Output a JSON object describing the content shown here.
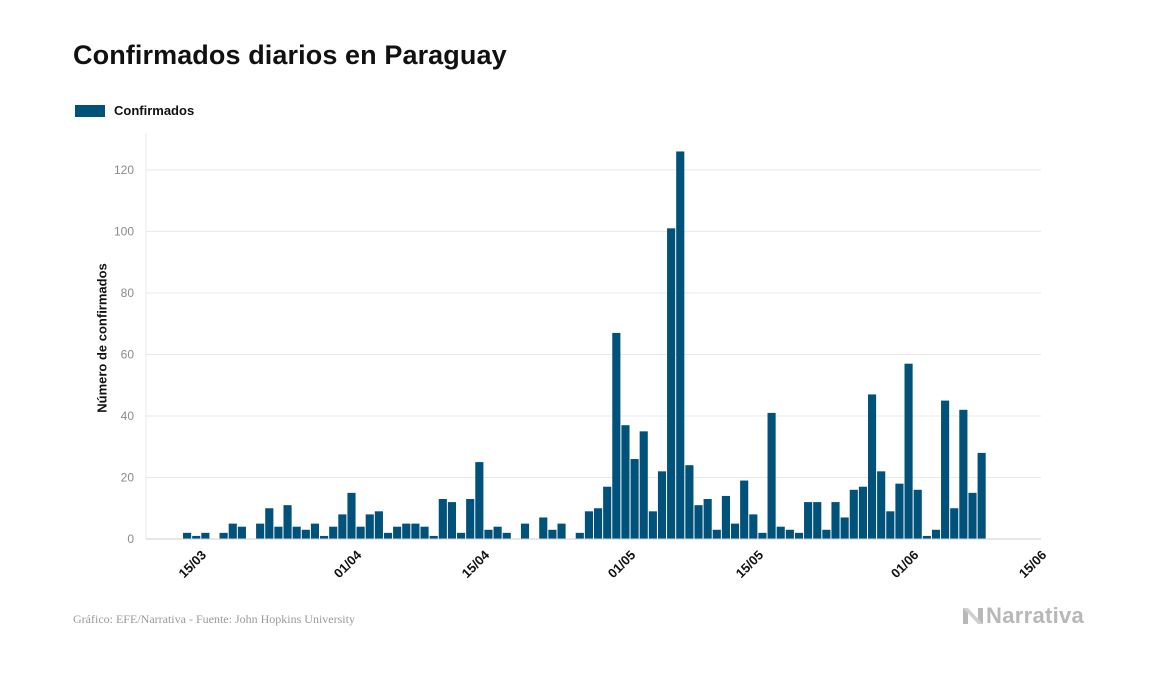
{
  "colors": {
    "bar": "#00527a",
    "grid": "#e8e8e8",
    "axis": "#cfcfcf"
  },
  "logo": {
    "text": "Narrativa",
    "icon": "narrativa-n-icon"
  },
  "source": "Gráfico: EFE/Narrativa - Fuente: John Hopkins University",
  "chart_data": {
    "type": "bar",
    "title": "Confirmados diarios en Paraguay",
    "xlabel": "",
    "ylabel": "Número de confirmados",
    "ylim": [
      0,
      132
    ],
    "yticks": [
      0,
      20,
      40,
      60,
      80,
      100,
      120
    ],
    "grid": true,
    "legend_position": "top-left",
    "x_start": "2020-03-10",
    "x_end": "2020-06-15",
    "xticks": [
      {
        "date": "2020-03-15",
        "label": "15/03"
      },
      {
        "date": "2020-04-01",
        "label": "01/04"
      },
      {
        "date": "2020-04-15",
        "label": "15/04"
      },
      {
        "date": "2020-05-01",
        "label": "01/05"
      },
      {
        "date": "2020-05-15",
        "label": "15/05"
      },
      {
        "date": "2020-06-01",
        "label": "01/06"
      },
      {
        "date": "2020-06-15",
        "label": "15/06"
      }
    ],
    "series": [
      {
        "name": "Confirmados",
        "first_date": "2020-03-10",
        "values": [
          0,
          0,
          0,
          0,
          2,
          1,
          2,
          0,
          2,
          5,
          4,
          0,
          5,
          10,
          4,
          11,
          4,
          3,
          5,
          1,
          4,
          8,
          15,
          4,
          8,
          9,
          2,
          4,
          5,
          5,
          4,
          1,
          13,
          12,
          2,
          13,
          25,
          3,
          4,
          2,
          0,
          5,
          0,
          7,
          3,
          5,
          0,
          2,
          9,
          10,
          17,
          67,
          37,
          26,
          35,
          9,
          22,
          101,
          126,
          24,
          11,
          13,
          3,
          14,
          5,
          19,
          8,
          2,
          41,
          4,
          3,
          2,
          12,
          12,
          3,
          12,
          7,
          16,
          17,
          47,
          22,
          9,
          18,
          57,
          16,
          1,
          3,
          45,
          10,
          42,
          15,
          28
        ]
      }
    ]
  }
}
